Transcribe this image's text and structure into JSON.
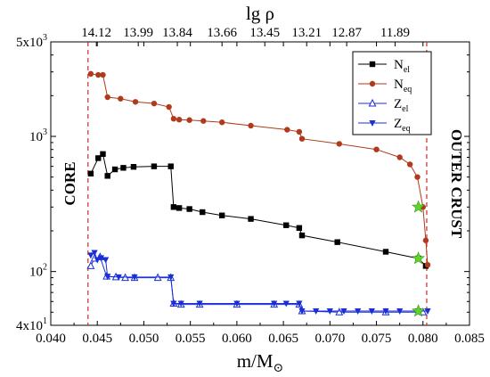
{
  "chart_data": {
    "type": "line",
    "xlabel": "m/M",
    "xlabel_sub": "⊙",
    "top_label": "lg ρ",
    "xlim": [
      0.04,
      0.085
    ],
    "ylim": [
      40,
      5000
    ],
    "y_scale": "log",
    "x_ticks": [
      "0.040",
      "0.045",
      "0.050",
      "0.055",
      "0.060",
      "0.065",
      "0.070",
      "0.075",
      "0.080",
      "0.085"
    ],
    "x_tick_values": [
      0.04,
      0.045,
      0.05,
      0.055,
      0.06,
      0.065,
      0.07,
      0.075,
      0.08,
      0.085
    ],
    "y_ticks": [
      {
        "value": 5000,
        "mantissa": "5x10",
        "exp": "3"
      },
      {
        "value": 1000,
        "mantissa": "10",
        "exp": "3"
      },
      {
        "value": 100,
        "mantissa": "10",
        "exp": "2"
      },
      {
        "value": 40,
        "mantissa": "4x10",
        "exp": "1"
      }
    ],
    "top_ticks": [
      {
        "x": 0.0449,
        "label": "14.12"
      },
      {
        "x": 0.0494,
        "label": "13.99"
      },
      {
        "x": 0.0536,
        "label": "13.84"
      },
      {
        "x": 0.0584,
        "label": "13.66"
      },
      {
        "x": 0.063,
        "label": "13.45"
      },
      {
        "x": 0.0675,
        "label": "13.21"
      },
      {
        "x": 0.0718,
        "label": "12.87"
      },
      {
        "x": 0.077,
        "label": "11.89"
      }
    ],
    "annotations": {
      "core": "CORE",
      "outer_crust": "OUTER CRUST",
      "core_line_x": 0.044,
      "crust_line_x": 0.0804
    },
    "legend": {
      "placement": "top-right"
    },
    "series": [
      {
        "name": "N",
        "sub": "el",
        "color": "#000000",
        "marker": "square",
        "points": [
          [
            0.0443,
            530
          ],
          [
            0.0451,
            690
          ],
          [
            0.0456,
            740
          ],
          [
            0.0461,
            510
          ],
          [
            0.0469,
            570
          ],
          [
            0.0478,
            585
          ],
          [
            0.0489,
            595
          ],
          [
            0.0511,
            600
          ],
          [
            0.0529,
            600
          ],
          [
            0.0532,
            300
          ],
          [
            0.0538,
            295
          ],
          [
            0.0549,
            290
          ],
          [
            0.0563,
            275
          ],
          [
            0.0584,
            260
          ],
          [
            0.0615,
            245
          ],
          [
            0.0653,
            220
          ],
          [
            0.0667,
            210
          ],
          [
            0.067,
            185
          ],
          [
            0.0708,
            165
          ],
          [
            0.076,
            140
          ],
          [
            0.0795,
            125
          ],
          [
            0.0803,
            110
          ]
        ]
      },
      {
        "name": "N",
        "sub": "eq",
        "color": "#b03a1c",
        "marker": "circle",
        "points": [
          [
            0.0443,
            2900
          ],
          [
            0.0451,
            2850
          ],
          [
            0.0456,
            2850
          ],
          [
            0.0461,
            1950
          ],
          [
            0.0475,
            1900
          ],
          [
            0.0491,
            1800
          ],
          [
            0.0511,
            1750
          ],
          [
            0.0527,
            1650
          ],
          [
            0.0532,
            1350
          ],
          [
            0.0538,
            1330
          ],
          [
            0.0549,
            1320
          ],
          [
            0.0564,
            1300
          ],
          [
            0.0584,
            1270
          ],
          [
            0.0615,
            1200
          ],
          [
            0.0654,
            1120
          ],
          [
            0.0667,
            1080
          ],
          [
            0.067,
            960
          ],
          [
            0.071,
            880
          ],
          [
            0.075,
            800
          ],
          [
            0.0775,
            700
          ],
          [
            0.0786,
            620
          ],
          [
            0.0794,
            500
          ],
          [
            0.08,
            300
          ],
          [
            0.0803,
            170
          ],
          [
            0.0805,
            112
          ]
        ]
      },
      {
        "name": "Z",
        "sub": "el",
        "color": "#1a2ed6",
        "marker": "triangle-up-open",
        "points": [
          [
            0.0443,
            110
          ],
          [
            0.0447,
            125
          ],
          [
            0.0453,
            128
          ],
          [
            0.046,
            92
          ],
          [
            0.047,
            91
          ],
          [
            0.048,
            90
          ],
          [
            0.049,
            90
          ],
          [
            0.0515,
            90
          ],
          [
            0.0529,
            90
          ],
          [
            0.0532,
            58
          ],
          [
            0.054,
            57
          ],
          [
            0.056,
            57
          ],
          [
            0.06,
            57
          ],
          [
            0.064,
            57
          ],
          [
            0.0667,
            57
          ],
          [
            0.067,
            51
          ],
          [
            0.071,
            50
          ],
          [
            0.076,
            50
          ],
          [
            0.08,
            50
          ]
        ]
      },
      {
        "name": "Z",
        "sub": "eq",
        "color": "#1a2ed6",
        "marker": "triangle-down",
        "points": [
          [
            0.0443,
            132
          ],
          [
            0.0447,
            138
          ],
          [
            0.045,
            122
          ],
          [
            0.0454,
            126
          ],
          [
            0.0459,
            122
          ],
          [
            0.0461,
            92
          ],
          [
            0.0473,
            91
          ],
          [
            0.049,
            91
          ],
          [
            0.0529,
            91
          ],
          [
            0.0532,
            58
          ],
          [
            0.054,
            58
          ],
          [
            0.056,
            58
          ],
          [
            0.06,
            58
          ],
          [
            0.064,
            58
          ],
          [
            0.0653,
            58
          ],
          [
            0.0667,
            58
          ],
          [
            0.067,
            51
          ],
          [
            0.0685,
            51
          ],
          [
            0.07,
            51
          ],
          [
            0.0715,
            51
          ],
          [
            0.073,
            51
          ],
          [
            0.0745,
            51
          ],
          [
            0.076,
            51
          ],
          [
            0.0775,
            51
          ],
          [
            0.0795,
            51
          ],
          [
            0.0805,
            51
          ]
        ]
      }
    ],
    "stars": {
      "color": "#5fd32a",
      "points": [
        [
          0.0795,
          300
        ],
        [
          0.0795,
          125
        ],
        [
          0.0795,
          51
        ]
      ]
    }
  }
}
